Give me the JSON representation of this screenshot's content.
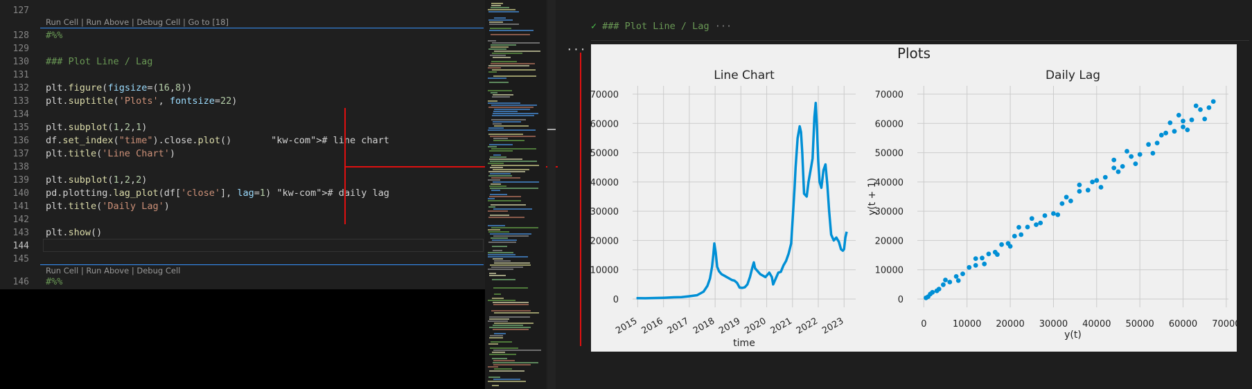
{
  "editor": {
    "lines": [
      {
        "num": "127",
        "text": ""
      },
      {
        "num": "128",
        "text": "#%%"
      },
      {
        "num": "129",
        "text": ""
      },
      {
        "num": "130",
        "text": "### Plot Line / Lag"
      },
      {
        "num": "131",
        "text": ""
      },
      {
        "num": "132",
        "text": "plt.figure(figsize=(16,8))"
      },
      {
        "num": "133",
        "text": "plt.suptitle('Plots', fontsize=22)"
      },
      {
        "num": "134",
        "text": ""
      },
      {
        "num": "135",
        "text": "plt.subplot(1,2,1)"
      },
      {
        "num": "136",
        "text": "df.set_index(\"time\").close.plot()       # line chart"
      },
      {
        "num": "137",
        "text": "plt.title('Line Chart')"
      },
      {
        "num": "138",
        "text": ""
      },
      {
        "num": "139",
        "text": "plt.subplot(1,2,2)"
      },
      {
        "num": "140",
        "text": "pd.plotting.lag_plot(df['close'], lag=1) # daily lag"
      },
      {
        "num": "141",
        "text": "plt.title('Daily Lag')"
      },
      {
        "num": "142",
        "text": ""
      },
      {
        "num": "143",
        "text": "plt.show()"
      },
      {
        "num": "144",
        "text": ""
      },
      {
        "num": "145",
        "text": ""
      },
      {
        "num": "146",
        "text": "#%%"
      }
    ],
    "codelens_top": [
      "Run Cell",
      "Run Above",
      "Debug Cell",
      "Go to [18]"
    ],
    "codelens_bottom": [
      "Run Cell",
      "Run Above",
      "Debug Cell"
    ],
    "separator": " | "
  },
  "output": {
    "header": "### Plot Line / Lag",
    "header_more": "···",
    "more_label": "···",
    "check_icon": "check-icon",
    "accent": "#3794ff",
    "annotation_color": "#e01010"
  },
  "chart_data": [
    {
      "type": "line",
      "suptitle": "Plots",
      "title": "Line Chart",
      "xlabel": "time",
      "ylabel": "",
      "x_ticks": [
        "2015",
        "2016",
        "2017",
        "2018",
        "2019",
        "2020",
        "2021",
        "2022",
        "2023"
      ],
      "y_ticks": [
        "0",
        "10000",
        "20000",
        "30000",
        "40000",
        "50000",
        "60000",
        "70000"
      ],
      "ylim": [
        0,
        70000
      ],
      "xlim": [
        2014.8,
        2023.45
      ],
      "color": "#008fd5",
      "grid": true,
      "series": [
        {
          "x": [
            2014.95,
            2015.3,
            2015.7,
            2016.0,
            2016.4,
            2016.7,
            2017.0,
            2017.3,
            2017.55,
            2017.7,
            2017.8,
            2017.88,
            2017.93,
            2017.97,
            2018.02,
            2018.08,
            2018.15,
            2018.25,
            2018.35,
            2018.45,
            2018.55,
            2018.65,
            2018.75,
            2018.85,
            2018.95,
            2019.05,
            2019.15,
            2019.25,
            2019.35,
            2019.45,
            2019.5,
            2019.55,
            2019.65,
            2019.75,
            2019.85,
            2019.95,
            2020.1,
            2020.2,
            2020.25,
            2020.35,
            2020.45,
            2020.55,
            2020.65,
            2020.75,
            2020.85,
            2020.95,
            2021.02,
            2021.08,
            2021.12,
            2021.2,
            2021.28,
            2021.33,
            2021.38,
            2021.45,
            2021.55,
            2021.62,
            2021.7,
            2021.78,
            2021.85,
            2021.9,
            2021.95,
            2022.0,
            2022.05,
            2022.12,
            2022.2,
            2022.28,
            2022.35,
            2022.42,
            2022.5,
            2022.6,
            2022.7,
            2022.8,
            2022.88,
            2022.95,
            2023.0,
            2023.05,
            2023.1
          ],
          "y": [
            300,
            250,
            350,
            430,
            600,
            650,
            950,
            1300,
            2500,
            4500,
            7000,
            11000,
            15000,
            19000,
            16000,
            11000,
            9500,
            8500,
            8000,
            7500,
            7000,
            6500,
            6300,
            5500,
            3900,
            3800,
            4000,
            5000,
            7500,
            11000,
            12500,
            10500,
            9500,
            8500,
            8000,
            7500,
            9000,
            7500,
            5000,
            7000,
            9000,
            9300,
            11500,
            13000,
            15500,
            19000,
            29000,
            38000,
            45000,
            55000,
            59000,
            57000,
            50000,
            36000,
            35000,
            40000,
            44000,
            48000,
            62000,
            67000,
            58000,
            47000,
            40000,
            38000,
            44000,
            46000,
            39000,
            30000,
            22000,
            20000,
            21000,
            19500,
            17000,
            16500,
            17000,
            21000,
            23000
          ]
        }
      ]
    },
    {
      "type": "scatter",
      "title": "Daily Lag",
      "xlabel": "y(t)",
      "ylabel": "y(t + 1)",
      "x_ticks": [
        "0",
        "10000",
        "20000",
        "30000",
        "40000",
        "50000",
        "60000",
        "70000"
      ],
      "y_ticks": [
        "0",
        "10000",
        "20000",
        "30000",
        "40000",
        "50000",
        "60000",
        "70000"
      ],
      "xlim": [
        -1500,
        70500
      ],
      "ylim": [
        -3500,
        70000
      ],
      "color": "#008fd5",
      "grid": true,
      "series": [
        {
          "points": [
            [
              500,
              400
            ],
            [
              1500,
              1700
            ],
            [
              3000,
              2800
            ],
            [
              4500,
              4900
            ],
            [
              6000,
              5800
            ],
            [
              7500,
              7700
            ],
            [
              9000,
              8600
            ],
            [
              10500,
              10800
            ],
            [
              12000,
              11500
            ],
            [
              13500,
              14000
            ],
            [
              15000,
              15400
            ],
            [
              16500,
              16000
            ],
            [
              18000,
              18600
            ],
            [
              19500,
              19000
            ],
            [
              21000,
              21500
            ],
            [
              22500,
              22000
            ],
            [
              24000,
              24600
            ],
            [
              26000,
              25400
            ],
            [
              28000,
              28500
            ],
            [
              30000,
              29200
            ],
            [
              32000,
              32600
            ],
            [
              34000,
              33500
            ],
            [
              36000,
              36800
            ],
            [
              38000,
              37200
            ],
            [
              40000,
              40500
            ],
            [
              42000,
              41600
            ],
            [
              44000,
              44800
            ],
            [
              46000,
              45300
            ],
            [
              48000,
              48700
            ],
            [
              50000,
              49400
            ],
            [
              52000,
              52800
            ],
            [
              54000,
              53300
            ],
            [
              56000,
              56700
            ],
            [
              58000,
              57300
            ],
            [
              60000,
              60800
            ],
            [
              62000,
              61200
            ],
            [
              64000,
              64700
            ],
            [
              66000,
              65400
            ],
            [
              5000,
              6500
            ],
            [
              8000,
              6300
            ],
            [
              12000,
              13800
            ],
            [
              17000,
              15200
            ],
            [
              25000,
              27500
            ],
            [
              31000,
              28800
            ],
            [
              36000,
              39000
            ],
            [
              41000,
              38200
            ],
            [
              47000,
              50500
            ],
            [
              53000,
              49800
            ],
            [
              57000,
              60200
            ],
            [
              61000,
              57800
            ],
            [
              63000,
              66000
            ],
            [
              65000,
              61500
            ],
            [
              20000,
              18000
            ],
            [
              22000,
              24500
            ],
            [
              14000,
              12000
            ],
            [
              44000,
              47500
            ],
            [
              49000,
              46200
            ],
            [
              59000,
              62800
            ],
            [
              67000,
              67500
            ],
            [
              1000,
              800
            ],
            [
              2000,
              2300
            ],
            [
              3500,
              3400
            ],
            [
              27000,
              26000
            ],
            [
              33000,
              34800
            ],
            [
              39000,
              40000
            ],
            [
              45000,
              43500
            ],
            [
              55000,
              56000
            ],
            [
              60000,
              58800
            ]
          ]
        }
      ]
    }
  ]
}
